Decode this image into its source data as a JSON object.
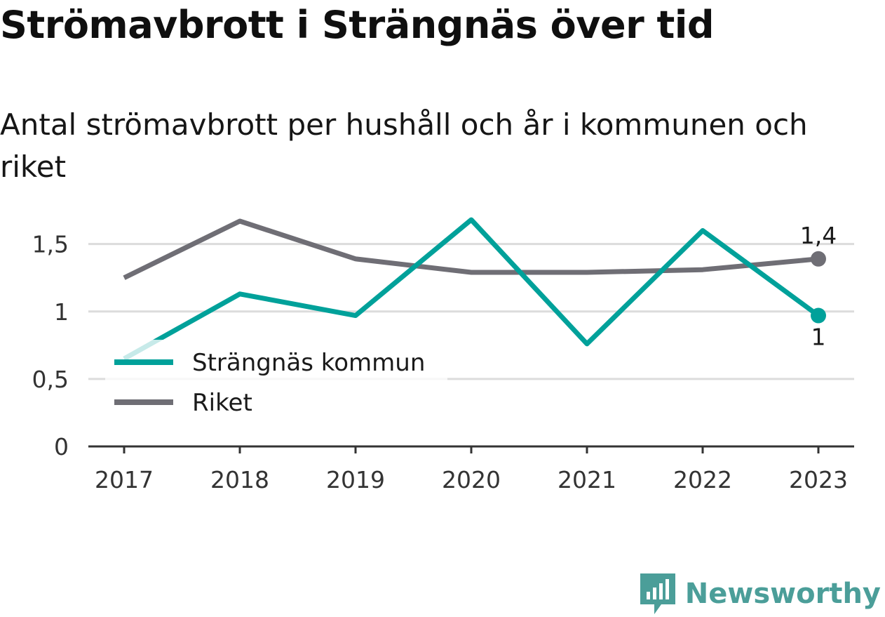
{
  "title": "Strömavbrott i Strängnäs över tid",
  "subtitle": "Antal strömavbrott per hushåll och år i kommunen och riket",
  "brand": {
    "name": "Newsworthy",
    "icon": "newsworthy-logo-icon",
    "color": "#4b9e99"
  },
  "chart_data": {
    "type": "line",
    "x": [
      "2017",
      "2018",
      "2019",
      "2020",
      "2021",
      "2022",
      "2023"
    ],
    "ylim": [
      0,
      1.8
    ],
    "yticks": [
      0,
      0.5,
      1,
      1.5
    ],
    "ytick_labels": [
      "0",
      "0,5",
      "1",
      "1,5"
    ],
    "grid": true,
    "legend_position": "left",
    "series": [
      {
        "name": "Strängnäs kommun",
        "color": "#00a19a",
        "values": [
          0.65,
          1.13,
          0.97,
          1.68,
          0.76,
          1.6,
          0.97
        ],
        "end_label": "1"
      },
      {
        "name": "Riket",
        "color": "#6f6e75",
        "values": [
          1.25,
          1.67,
          1.39,
          1.29,
          1.29,
          1.31,
          1.39
        ],
        "end_label": "1,4"
      }
    ]
  }
}
